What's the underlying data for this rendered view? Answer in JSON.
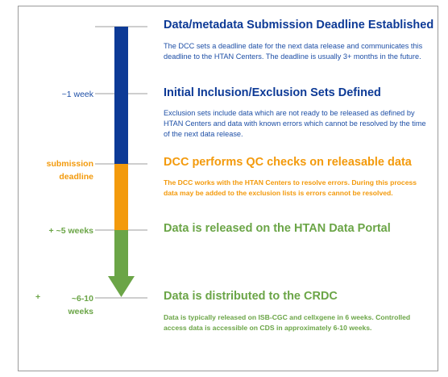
{
  "colors": {
    "blue": "#0d3a96",
    "orange": "#f39a0c",
    "green": "#6ba547",
    "desc_blue": "#1e4fa6",
    "line": "#9c9c9c"
  },
  "stages": [
    {
      "title": "Data/metadata Submission Deadline Established",
      "description": "The DCC sets a deadline date for the next data release  and communicates this deadline to the HTAN Centers.  The deadline is usually 3+ months in the future."
    },
    {
      "title": "Initial Inclusion/Exclusion Sets Defined",
      "description": "Exclusion sets include data which are not ready to be released as defined by HTAN Centers and data with known errors which cannot be resolved by the time of the next data release."
    },
    {
      "title": "DCC performs QC checks on releasable data",
      "description": "The DCC works with the HTAN Centers to resolve errors.  During this process data may be added to the exclusion lists is errors cannot be resolved."
    },
    {
      "title": "Data is released on the HTAN Data Portal",
      "description": ""
    },
    {
      "title": "Data is distributed to the CRDC",
      "description": "Data is typically released on ISB-CGC and cellxgene in 6 weeks.  Controlled access data is accessible on CDS in approximately 6-10 weeks."
    }
  ],
  "time_labels": {
    "one_week": "~1 week",
    "submission_line1": "submission",
    "submission_line2": "deadline",
    "five_weeks": "+ ~5 weeks",
    "plus": "+",
    "six_ten_line1": "~6-10",
    "six_ten_line2": "weeks"
  }
}
